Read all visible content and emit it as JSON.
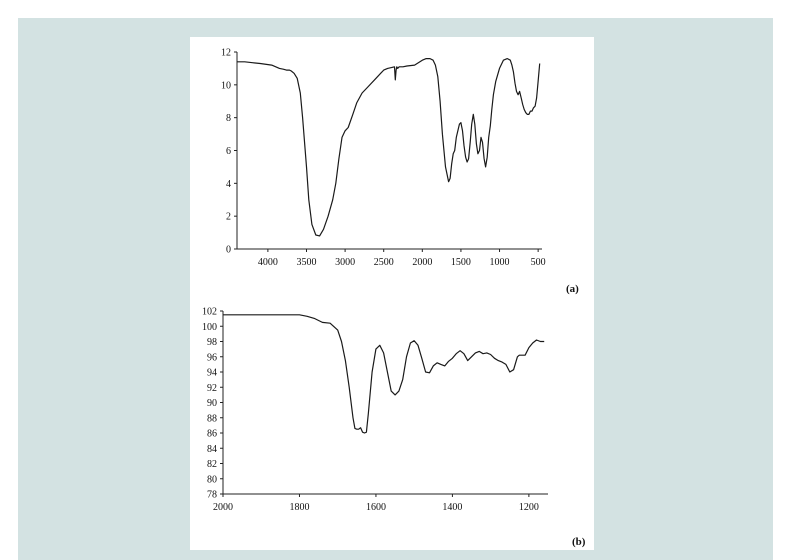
{
  "chart_data": [
    {
      "type": "line",
      "panel_label": "(a)",
      "x_reversed": true,
      "xlim": [
        4400,
        450
      ],
      "ylim": [
        0,
        12
      ],
      "x_ticks": [
        4000,
        3500,
        3000,
        2500,
        2000,
        1500,
        1000,
        500
      ],
      "y_ticks": [
        0,
        2,
        4,
        6,
        8,
        10,
        12
      ],
      "series": [
        {
          "x": [
            4400,
            4300,
            4200,
            4100,
            3950,
            3850,
            3800,
            3760,
            3720,
            3700,
            3660,
            3620,
            3580,
            3550,
            3500,
            3470,
            3430,
            3380,
            3330,
            3280,
            3220,
            3160,
            3120,
            3080,
            3040,
            3000,
            2960,
            2900,
            2850,
            2780,
            2700,
            2600,
            2500,
            2450,
            2400,
            2360,
            2350,
            2340,
            2330,
            2320,
            2300,
            2250,
            2200,
            2100,
            2000,
            1950,
            1900,
            1860,
            1830,
            1800,
            1770,
            1740,
            1700,
            1660,
            1640,
            1620,
            1600,
            1580,
            1560,
            1520,
            1500,
            1480,
            1460,
            1440,
            1420,
            1400,
            1380,
            1360,
            1340,
            1320,
            1300,
            1280,
            1260,
            1240,
            1220,
            1200,
            1180,
            1160,
            1140,
            1120,
            1100,
            1080,
            1050,
            1000,
            950,
            900,
            860,
            840,
            820,
            800,
            780,
            760,
            740,
            720,
            700,
            680,
            660,
            640,
            620,
            600,
            580,
            560,
            540,
            520,
            500,
            480
          ],
          "y": [
            11.4,
            11.4,
            11.35,
            11.3,
            11.2,
            11.0,
            10.95,
            10.9,
            10.9,
            10.85,
            10.7,
            10.4,
            9.5,
            8.0,
            5.0,
            3.0,
            1.5,
            0.85,
            0.8,
            1.2,
            2.0,
            3.0,
            4.0,
            5.5,
            6.8,
            7.2,
            7.4,
            8.2,
            8.9,
            9.5,
            9.9,
            10.4,
            10.9,
            11.0,
            11.05,
            11.1,
            10.3,
            10.9,
            11.1,
            11.0,
            11.1,
            11.1,
            11.15,
            11.2,
            11.5,
            11.6,
            11.6,
            11.5,
            11.2,
            10.5,
            9.0,
            7.0,
            5.0,
            4.1,
            4.3,
            5.2,
            5.8,
            6.0,
            6.8,
            7.6,
            7.7,
            7.2,
            6.3,
            5.6,
            5.3,
            5.5,
            6.5,
            7.6,
            8.2,
            7.6,
            6.4,
            5.8,
            6.0,
            6.8,
            6.5,
            5.5,
            5.0,
            5.6,
            6.8,
            7.5,
            8.5,
            9.4,
            10.2,
            11.0,
            11.5,
            11.6,
            11.5,
            11.2,
            10.8,
            10.1,
            9.6,
            9.4,
            9.6,
            9.2,
            8.8,
            8.5,
            8.3,
            8.2,
            8.2,
            8.4,
            8.4,
            8.6,
            8.7,
            9.2,
            10.2,
            11.3
          ]
        }
      ]
    },
    {
      "type": "line",
      "panel_label": "(b)",
      "x_reversed": true,
      "xlim": [
        2000,
        1150
      ],
      "ylim": [
        78,
        102
      ],
      "x_ticks": [
        2000,
        1800,
        1600,
        1400,
        1200
      ],
      "y_ticks": [
        78,
        80,
        82,
        84,
        86,
        88,
        90,
        92,
        94,
        96,
        98,
        100,
        102
      ],
      "series": [
        {
          "x": [
            2000,
            1900,
            1800,
            1780,
            1760,
            1740,
            1720,
            1700,
            1690,
            1680,
            1670,
            1660,
            1655,
            1650,
            1645,
            1640,
            1635,
            1630,
            1625,
            1620,
            1610,
            1600,
            1590,
            1580,
            1570,
            1560,
            1550,
            1540,
            1530,
            1520,
            1510,
            1500,
            1490,
            1480,
            1470,
            1460,
            1450,
            1440,
            1430,
            1420,
            1410,
            1400,
            1390,
            1380,
            1370,
            1360,
            1350,
            1340,
            1330,
            1320,
            1310,
            1300,
            1290,
            1280,
            1270,
            1260,
            1250,
            1240,
            1230,
            1225,
            1220,
            1210,
            1200,
            1190,
            1180,
            1170,
            1160
          ],
          "y": [
            101.5,
            101.5,
            101.5,
            101.3,
            101.0,
            100.5,
            100.4,
            99.5,
            98.0,
            95.5,
            92.0,
            88.0,
            86.6,
            86.5,
            86.5,
            86.7,
            86.1,
            86.0,
            86.1,
            88.5,
            94.0,
            97.0,
            97.5,
            96.5,
            94.0,
            91.5,
            91.0,
            91.5,
            93.0,
            96.0,
            97.8,
            98.1,
            97.5,
            95.8,
            94.0,
            93.9,
            94.8,
            95.2,
            95.0,
            94.8,
            95.4,
            95.8,
            96.4,
            96.8,
            96.4,
            95.5,
            96.0,
            96.5,
            96.7,
            96.4,
            96.5,
            96.3,
            95.8,
            95.5,
            95.3,
            95.0,
            94.0,
            94.3,
            96.0,
            96.2,
            96.2,
            96.2,
            97.2,
            97.8,
            98.2,
            98.0,
            98.0
          ]
        }
      ]
    }
  ]
}
